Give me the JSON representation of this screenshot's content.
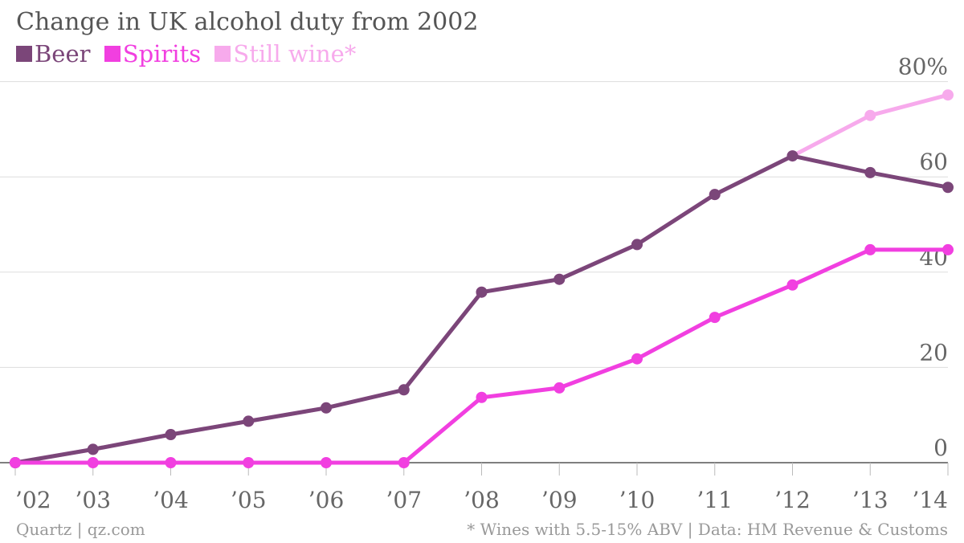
{
  "chart_data": {
    "type": "line",
    "title": "Change in UK alcohol duty from 2002",
    "x": [
      "’02",
      "’03",
      "’04",
      "’05",
      "’06",
      "’07",
      "’08",
      "’09",
      "’10",
      "’11",
      "’12",
      "’13",
      "’14"
    ],
    "y_ticks": [
      "0",
      "20",
      "40",
      "60",
      "80%"
    ],
    "ylim": [
      0,
      80
    ],
    "grid": true,
    "legend_position": "top-left",
    "series": [
      {
        "name": "Still wine*",
        "color": "#f7aaec",
        "values": [
          0,
          2.8,
          5.9,
          8.7,
          11.5,
          15.3,
          35.8,
          38.5,
          45.8,
          56.3,
          64.4,
          72.9,
          77.2
        ]
      },
      {
        "name": "Beer",
        "color": "#7b4679",
        "values": [
          0,
          2.8,
          5.9,
          8.7,
          11.5,
          15.3,
          35.8,
          38.5,
          45.8,
          56.3,
          64.4,
          60.9,
          57.8
        ]
      },
      {
        "name": "Spirits",
        "color": "#f13fe0",
        "values": [
          0,
          0,
          0,
          0,
          0,
          0,
          13.7,
          15.7,
          21.8,
          30.5,
          37.3,
          44.7,
          44.7
        ]
      }
    ],
    "legend": [
      {
        "name": "Beer",
        "color": "#7b4679"
      },
      {
        "name": "Spirits",
        "color": "#f13fe0"
      },
      {
        "name": "Still wine*",
        "color": "#f7aaec"
      }
    ]
  },
  "footer": {
    "source_left": "Quartz | qz.com",
    "note_right": "* Wines with 5.5-15% ABV | Data: HM Revenue & Customs"
  }
}
